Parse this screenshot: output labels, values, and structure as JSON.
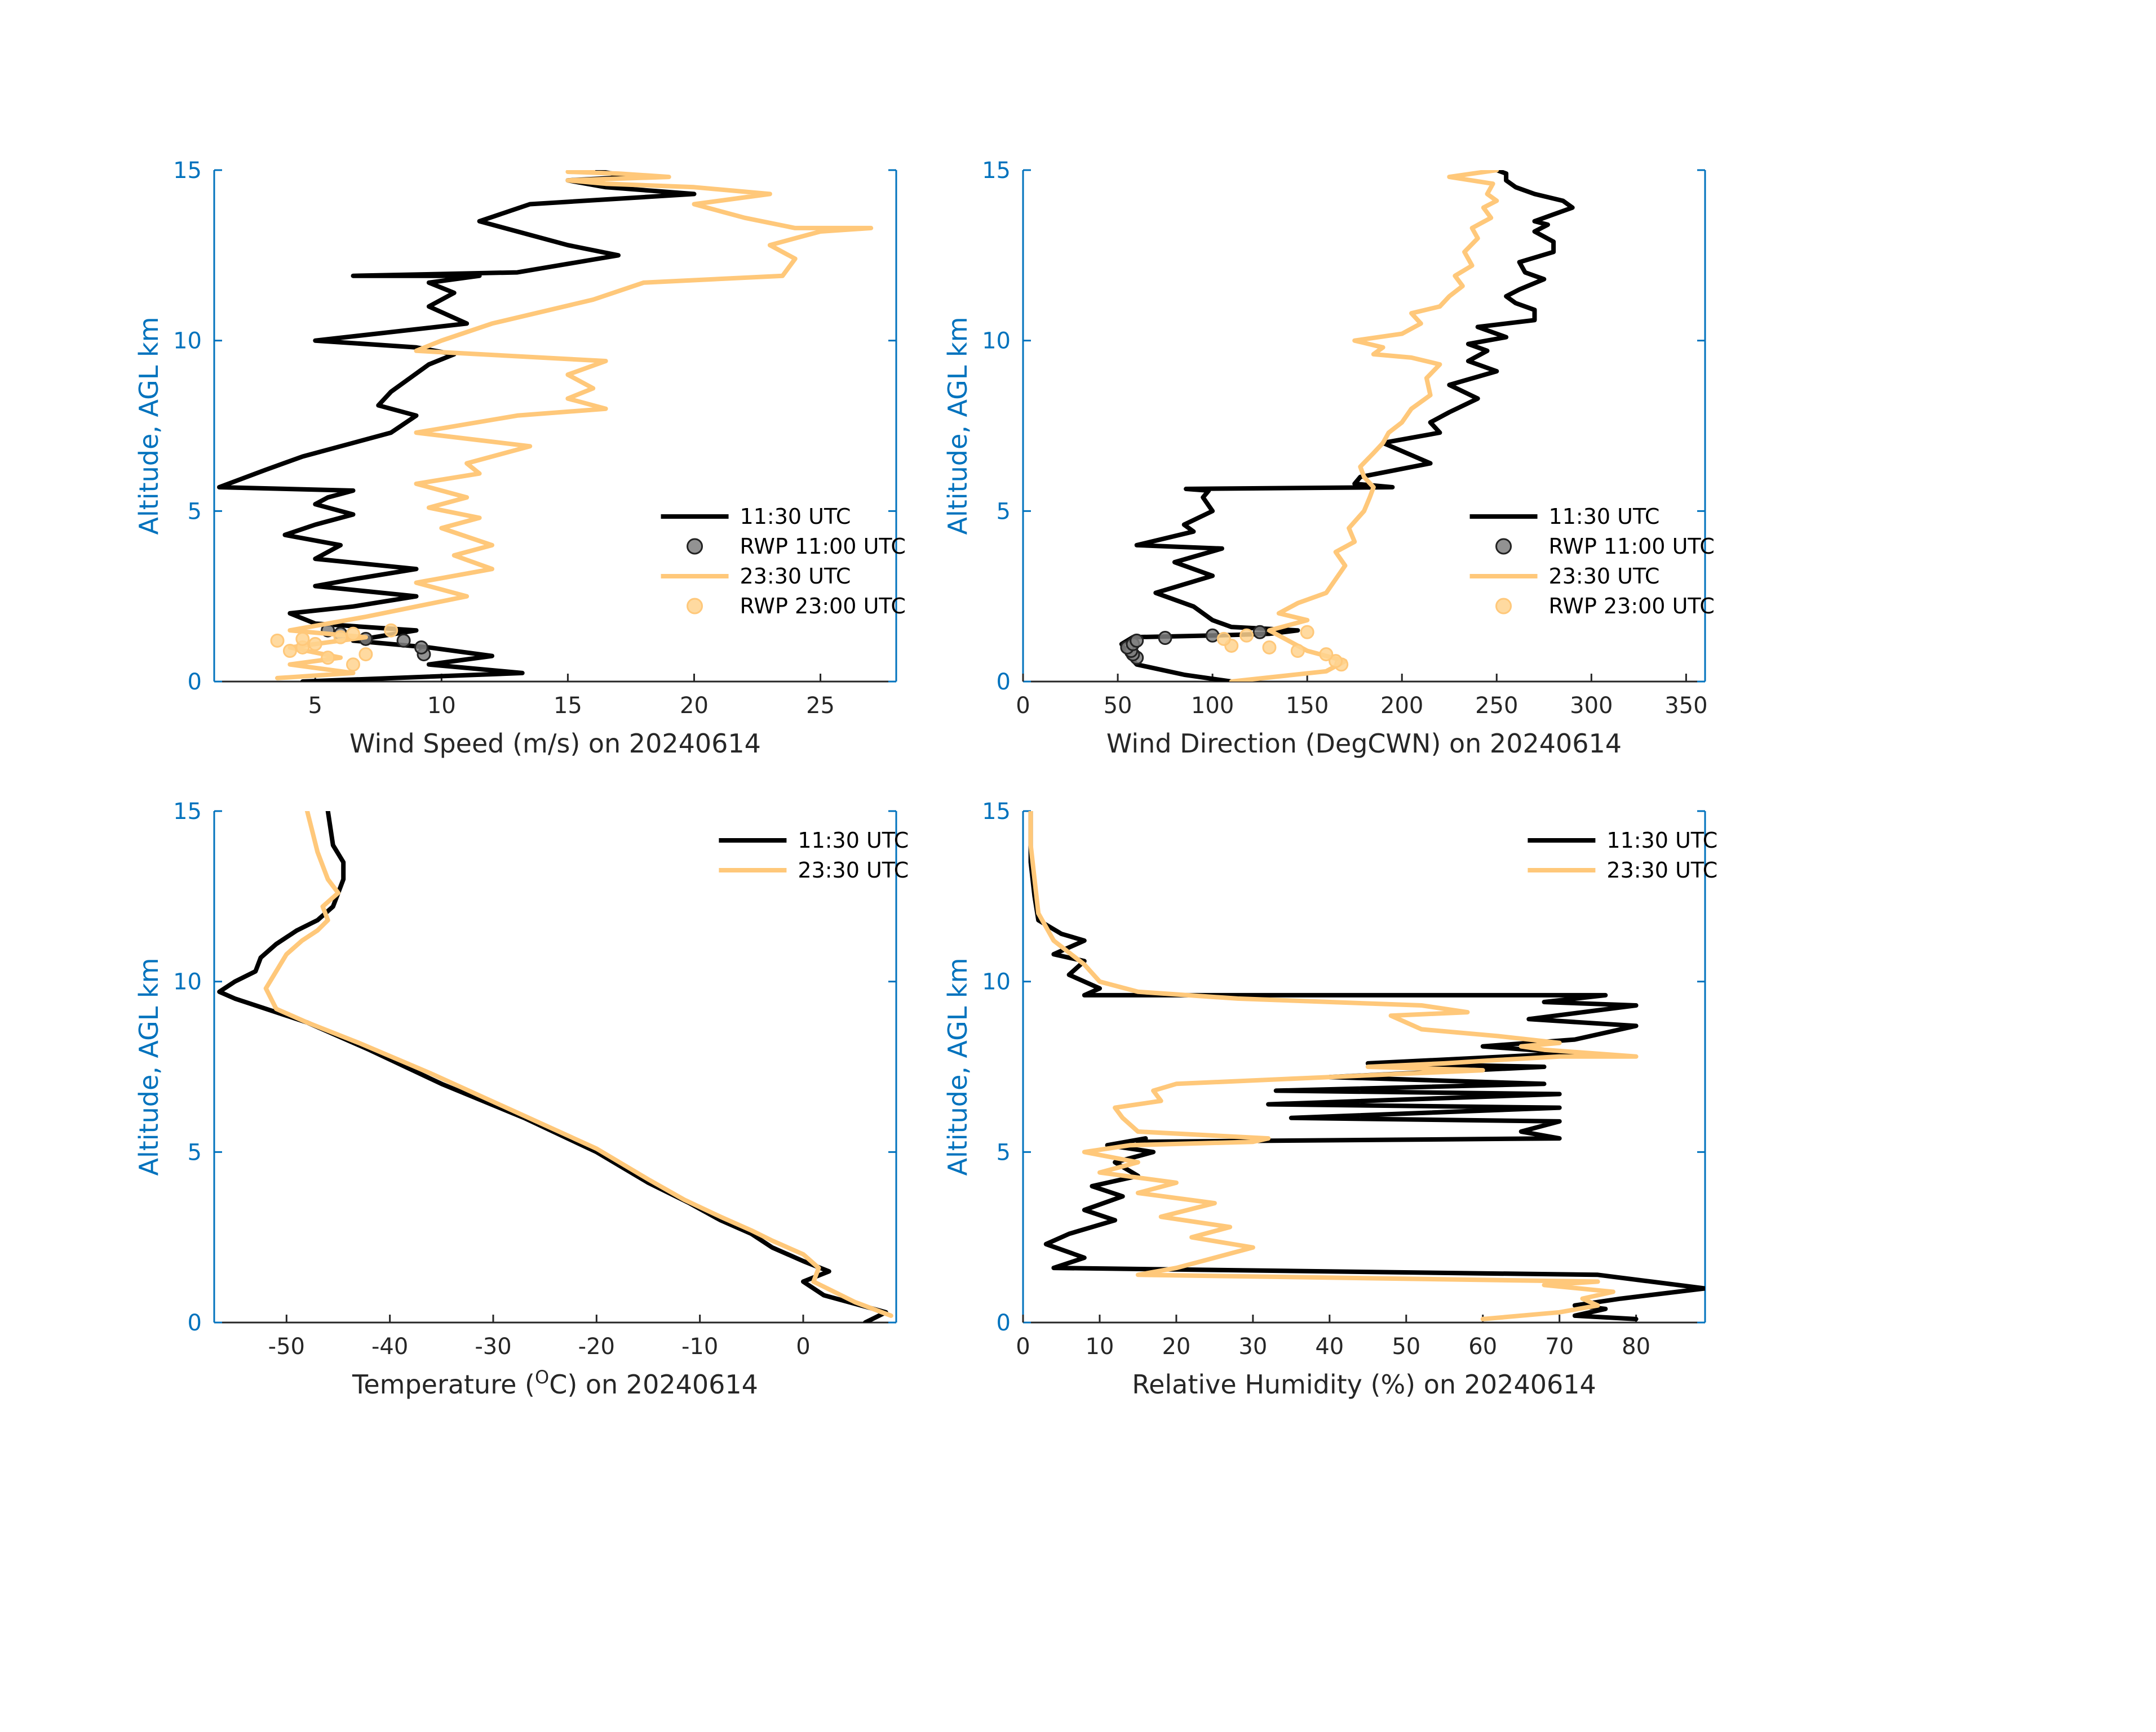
{
  "figure": {
    "date": "20240614"
  },
  "chart_data": [
    {
      "id": "wind-speed",
      "type": "line",
      "title": "",
      "xlabel": "Wind Speed (m/s) on 20240614",
      "ylabel": "Altitude, AGL km",
      "xlim": [
        1,
        28
      ],
      "ylim": [
        0,
        15
      ],
      "xticks": [
        5,
        10,
        15,
        20,
        25
      ],
      "yticks": [
        0,
        5,
        10,
        15
      ],
      "legend_position": "lower-right",
      "series": [
        {
          "name": "11:30 UTC",
          "kind": "line",
          "color": "#000000",
          "x": [
            4.5,
            13.2,
            9.5,
            12.0,
            9.5,
            6.5,
            9.0,
            5.0,
            4.0,
            6.5,
            9.0,
            5.0,
            6.5,
            9.0,
            5.0,
            6.0,
            3.8,
            5.0,
            6.5,
            5.0,
            5.5,
            6.5,
            1.2,
            3.0,
            4.5,
            6.5,
            8.0,
            9.0,
            7.5,
            8.0,
            9.5,
            10.5,
            9.0,
            5.0,
            11.0,
            9.5,
            10.5,
            9.5,
            11.5,
            6.5,
            13.0,
            17.0,
            15.0,
            11.5,
            13.5,
            20.0,
            16.5,
            15.0,
            17.5,
            16.0
          ],
          "y": [
            0.0,
            0.25,
            0.5,
            0.75,
            1.0,
            1.2,
            1.5,
            1.7,
            2.0,
            2.2,
            2.5,
            2.8,
            3.0,
            3.3,
            3.6,
            4.0,
            4.3,
            4.6,
            4.9,
            5.2,
            5.4,
            5.6,
            5.7,
            6.2,
            6.6,
            7.0,
            7.3,
            7.8,
            8.1,
            8.5,
            9.3,
            9.6,
            9.8,
            10.0,
            10.5,
            11.0,
            11.4,
            11.7,
            11.9,
            11.9,
            12.0,
            12.5,
            12.8,
            13.5,
            14.0,
            14.3,
            14.5,
            14.7,
            14.8,
            15.0
          ],
          "labels": []
        },
        {
          "name": "RWP 11:00 UTC",
          "kind": "marker",
          "color": "#7f7f7f",
          "x": [
            9.3,
            9.2,
            8.5,
            7.0,
            6.0,
            5.5
          ],
          "y": [
            0.8,
            1.0,
            1.2,
            1.25,
            1.4,
            1.5
          ],
          "labels": []
        },
        {
          "name": "23:30 UTC",
          "kind": "line",
          "color": "#FFC87A",
          "x": [
            3.5,
            6.5,
            4.0,
            6.0,
            4.0,
            7.0,
            4.0,
            7.0,
            9.0,
            11.0,
            9.0,
            12.0,
            10.5,
            12.0,
            10.0,
            11.5,
            9.5,
            11.0,
            9.0,
            11.5,
            11.0,
            13.5,
            9.0,
            13.0,
            16.5,
            15.0,
            16.0,
            15.0,
            16.5,
            11.5,
            9.0,
            10.0,
            12.0,
            16.0,
            18.0,
            23.5,
            24.0,
            23.0,
            24.5,
            25.0,
            27.0,
            24.0,
            22.0,
            20.0,
            23.0,
            20.0,
            16.5,
            15.0,
            19.0,
            17.0,
            15.0,
            16.0
          ],
          "y": [
            0.1,
            0.25,
            0.5,
            0.7,
            1.0,
            1.3,
            1.5,
            1.9,
            2.2,
            2.5,
            2.9,
            3.3,
            3.7,
            4.0,
            4.5,
            4.8,
            5.1,
            5.4,
            5.8,
            6.1,
            6.4,
            6.9,
            7.3,
            7.8,
            8.0,
            8.3,
            8.6,
            9.0,
            9.4,
            9.6,
            9.7,
            10.0,
            10.5,
            11.2,
            11.7,
            11.9,
            12.4,
            12.8,
            13.1,
            13.2,
            13.3,
            13.3,
            13.6,
            14.0,
            14.3,
            14.5,
            14.6,
            14.7,
            14.8,
            14.9,
            14.95,
            15.0
          ],
          "labels": []
        },
        {
          "name": "RWP 23:00 UTC",
          "kind": "marker",
          "color": "#FFD48F",
          "x": [
            6.5,
            5.5,
            7.0,
            4.0,
            4.5,
            5.0,
            3.5,
            4.5,
            6.0,
            6.5,
            8.0
          ],
          "y": [
            0.5,
            0.7,
            0.8,
            0.9,
            1.0,
            1.1,
            1.2,
            1.25,
            1.3,
            1.4,
            1.5
          ],
          "labels": []
        }
      ]
    },
    {
      "id": "wind-direction",
      "type": "line",
      "title": "",
      "xlabel": "Wind Direction (DegCWN) on 20240614",
      "ylabel": "Altitude, AGL km",
      "xlim": [
        0,
        360
      ],
      "ylim": [
        0,
        15
      ],
      "xticks": [
        0,
        50,
        100,
        150,
        200,
        250,
        300,
        350
      ],
      "yticks": [
        0,
        5,
        10,
        15
      ],
      "legend_position": "lower-right",
      "series": [
        {
          "name": "11:30 UTC",
          "kind": "line",
          "color": "#000000",
          "x": [
            110,
            85,
            60,
            55,
            52,
            58,
            100,
            130,
            145,
            110,
            100,
            95,
            90,
            70,
            100,
            80,
            105,
            60,
            90,
            85,
            100,
            95,
            98,
            86,
            195,
            175,
            178,
            215,
            190,
            220,
            215,
            225,
            240,
            225,
            250,
            235,
            245,
            235,
            255,
            240,
            270,
            270,
            260,
            255,
            262,
            275,
            265,
            262,
            280,
            280,
            270,
            277,
            270,
            275,
            290,
            285,
            270,
            260,
            255,
            255,
            250
          ],
          "y": [
            0.0,
            0.2,
            0.5,
            0.8,
            1.1,
            1.3,
            1.35,
            1.4,
            1.5,
            1.6,
            1.8,
            2.0,
            2.2,
            2.6,
            3.1,
            3.5,
            3.9,
            4.0,
            4.4,
            4.6,
            5.0,
            5.4,
            5.6,
            5.65,
            5.7,
            5.8,
            6.0,
            6.4,
            7.0,
            7.3,
            7.6,
            7.9,
            8.3,
            8.7,
            9.1,
            9.4,
            9.7,
            9.9,
            10.1,
            10.4,
            10.6,
            10.9,
            11.1,
            11.3,
            11.5,
            11.8,
            12.0,
            12.3,
            12.6,
            12.9,
            13.2,
            13.4,
            13.5,
            13.6,
            13.9,
            14.1,
            14.3,
            14.5,
            14.7,
            14.9,
            15.0
          ],
          "labels": []
        },
        {
          "name": "RWP 11:00 UTC",
          "kind": "marker",
          "color": "#7f7f7f",
          "x": [
            60,
            58,
            57,
            55,
            58,
            60,
            75,
            100,
            125
          ],
          "y": [
            0.7,
            0.8,
            0.9,
            1.0,
            1.1,
            1.2,
            1.28,
            1.35,
            1.45
          ],
          "labels": []
        },
        {
          "name": "23:30 UTC",
          "kind": "line",
          "color": "#FFC87A",
          "x": [
            110,
            160,
            170,
            150,
            140,
            130,
            150,
            135,
            145,
            160,
            165,
            170,
            165,
            175,
            172,
            180,
            183,
            185,
            180,
            178,
            185,
            190,
            193,
            200,
            205,
            215,
            213,
            220,
            205,
            185,
            190,
            175,
            200,
            210,
            205,
            220,
            225,
            232,
            228,
            237,
            233,
            240,
            237,
            247,
            243,
            250,
            245,
            248,
            225,
            250
          ],
          "y": [
            0.0,
            0.3,
            0.6,
            0.9,
            1.2,
            1.5,
            1.8,
            2.0,
            2.3,
            2.6,
            3.0,
            3.4,
            3.8,
            4.1,
            4.5,
            5.0,
            5.4,
            5.7,
            6.0,
            6.3,
            6.7,
            7.0,
            7.3,
            7.6,
            8.0,
            8.4,
            8.9,
            9.3,
            9.5,
            9.6,
            9.8,
            10.0,
            10.2,
            10.5,
            10.8,
            11.0,
            11.3,
            11.6,
            11.9,
            12.2,
            12.6,
            13.0,
            13.3,
            13.6,
            13.9,
            14.1,
            14.3,
            14.6,
            14.8,
            15.0
          ],
          "labels": []
        },
        {
          "name": "RWP 23:00 UTC",
          "kind": "marker",
          "color": "#FFD48F",
          "x": [
            168,
            165,
            160,
            145,
            130,
            110,
            106,
            118,
            150
          ],
          "y": [
            0.5,
            0.6,
            0.8,
            0.9,
            1.0,
            1.05,
            1.25,
            1.35,
            1.45
          ],
          "labels": []
        }
      ]
    },
    {
      "id": "temperature",
      "type": "line",
      "title": "",
      "xlabel": "Temperature (",
      "xlabel_sup": "O",
      "xlabel_suffix": "C) on 20240614",
      "ylabel": "Altitude, AGL km",
      "xlim": [
        -57,
        9
      ],
      "ylim": [
        0,
        15
      ],
      "xticks": [
        -50,
        -40,
        -30,
        -20,
        -10,
        0
      ],
      "yticks": [
        0,
        5,
        10,
        15
      ],
      "legend_position": "top-right",
      "series": [
        {
          "name": "11:30 UTC",
          "kind": "line",
          "color": "#000000",
          "x": [
            6.0,
            8.0,
            2.0,
            0.0,
            2.5,
            0.0,
            -3.0,
            -5.0,
            -8.0,
            -11.0,
            -15.0,
            -20.0,
            -27.0,
            -35.0,
            -42.0,
            -48.0,
            -52.0,
            -55.0,
            -56.5,
            -55.0,
            -53.0,
            -52.5,
            -51.0,
            -49.0,
            -47.0,
            -45.5,
            -45.0,
            -44.5,
            -44.5,
            -45.5,
            -46.0
          ],
          "y": [
            0.0,
            0.3,
            0.8,
            1.2,
            1.5,
            1.8,
            2.2,
            2.6,
            3.0,
            3.5,
            4.1,
            5.0,
            6.0,
            7.0,
            8.0,
            8.8,
            9.2,
            9.5,
            9.7,
            10.0,
            10.3,
            10.7,
            11.1,
            11.5,
            11.8,
            12.2,
            12.6,
            13.0,
            13.5,
            14.0,
            15.0
          ],
          "labels": []
        },
        {
          "name": "23:30 UTC",
          "kind": "line",
          "color": "#FFC87A",
          "x": [
            8.5,
            5.0,
            1.0,
            1.5,
            0.0,
            -3.0,
            -5.0,
            -8.0,
            -11.5,
            -15.0,
            -20.0,
            -28.0,
            -36.0,
            -43.0,
            -48.0,
            -51.0,
            -52.0,
            -51.0,
            -50.0,
            -48.5,
            -47.0,
            -46.0,
            -46.5,
            -45.0,
            -46.0,
            -47.0,
            -47.5,
            -48.0
          ],
          "y": [
            0.2,
            0.6,
            1.2,
            1.6,
            2.0,
            2.4,
            2.7,
            3.1,
            3.6,
            4.2,
            5.1,
            6.2,
            7.3,
            8.2,
            8.8,
            9.2,
            9.8,
            10.3,
            10.8,
            11.2,
            11.5,
            11.8,
            12.2,
            12.6,
            13.0,
            13.8,
            14.4,
            15.0
          ],
          "labels": []
        }
      ]
    },
    {
      "id": "relative-humidity",
      "type": "line",
      "title": "",
      "xlabel": "Relative Humidity (%) on 20240614",
      "ylabel": "Altitude, AGL km",
      "xlim": [
        0,
        89
      ],
      "ylim": [
        0,
        15
      ],
      "xticks": [
        0,
        10,
        20,
        30,
        40,
        50,
        60,
        70,
        80
      ],
      "yticks": [
        0,
        5,
        10,
        15
      ],
      "legend_position": "top-right",
      "series": [
        {
          "name": "11:30 UTC",
          "kind": "line",
          "color": "#000000",
          "x": [
            80,
            72,
            76,
            72,
            78,
            89,
            82,
            75,
            4,
            8,
            3,
            6,
            12,
            8,
            13,
            9,
            15,
            12,
            17,
            11,
            16,
            15,
            70,
            65,
            70,
            35,
            70,
            32,
            70,
            33,
            68,
            40,
            68,
            45,
            72,
            60,
            72,
            80,
            66,
            80,
            68,
            76,
            8,
            10,
            6,
            8,
            4,
            8,
            5,
            2,
            1.5,
            1,
            1
          ],
          "y": [
            0.1,
            0.2,
            0.4,
            0.5,
            0.7,
            1.0,
            1.2,
            1.4,
            1.6,
            1.9,
            2.3,
            2.6,
            3.0,
            3.3,
            3.7,
            4.0,
            4.3,
            4.7,
            5.0,
            5.2,
            5.4,
            5.3,
            5.4,
            5.6,
            5.9,
            6.0,
            6.3,
            6.4,
            6.7,
            6.8,
            7.0,
            7.2,
            7.5,
            7.6,
            7.9,
            8.1,
            8.3,
            8.7,
            8.9,
            9.3,
            9.4,
            9.6,
            9.6,
            9.8,
            10.2,
            10.6,
            10.8,
            11.2,
            11.4,
            11.8,
            12.5,
            13.5,
            15.0
          ],
          "labels": []
        },
        {
          "name": "23:30 UTC",
          "kind": "line",
          "color": "#FFC87A",
          "x": [
            60,
            70,
            75,
            73,
            77,
            68,
            75,
            15,
            20,
            25,
            30,
            22,
            27,
            18,
            25,
            15,
            20,
            10,
            15,
            8,
            14,
            30,
            32,
            15,
            13,
            12,
            15,
            18,
            17,
            20,
            40,
            60,
            45,
            55,
            62,
            70,
            80,
            74,
            68,
            65,
            70,
            62,
            52,
            50,
            48,
            58,
            52,
            28,
            15,
            10,
            8,
            4,
            2,
            1.5,
            1,
            1
          ],
          "y": [
            0.1,
            0.3,
            0.5,
            0.7,
            0.9,
            1.1,
            1.2,
            1.4,
            1.6,
            1.9,
            2.2,
            2.5,
            2.8,
            3.1,
            3.5,
            3.8,
            4.1,
            4.4,
            4.7,
            5.0,
            5.2,
            5.3,
            5.4,
            5.6,
            6.0,
            6.3,
            6.4,
            6.5,
            6.8,
            7.0,
            7.2,
            7.4,
            7.5,
            7.6,
            7.7,
            7.8,
            7.8,
            7.9,
            8.0,
            8.1,
            8.2,
            8.4,
            8.6,
            8.8,
            9.0,
            9.1,
            9.3,
            9.5,
            9.7,
            10.0,
            10.5,
            11.2,
            12.0,
            13.0,
            14.0,
            15.0
          ],
          "labels": []
        }
      ]
    }
  ]
}
